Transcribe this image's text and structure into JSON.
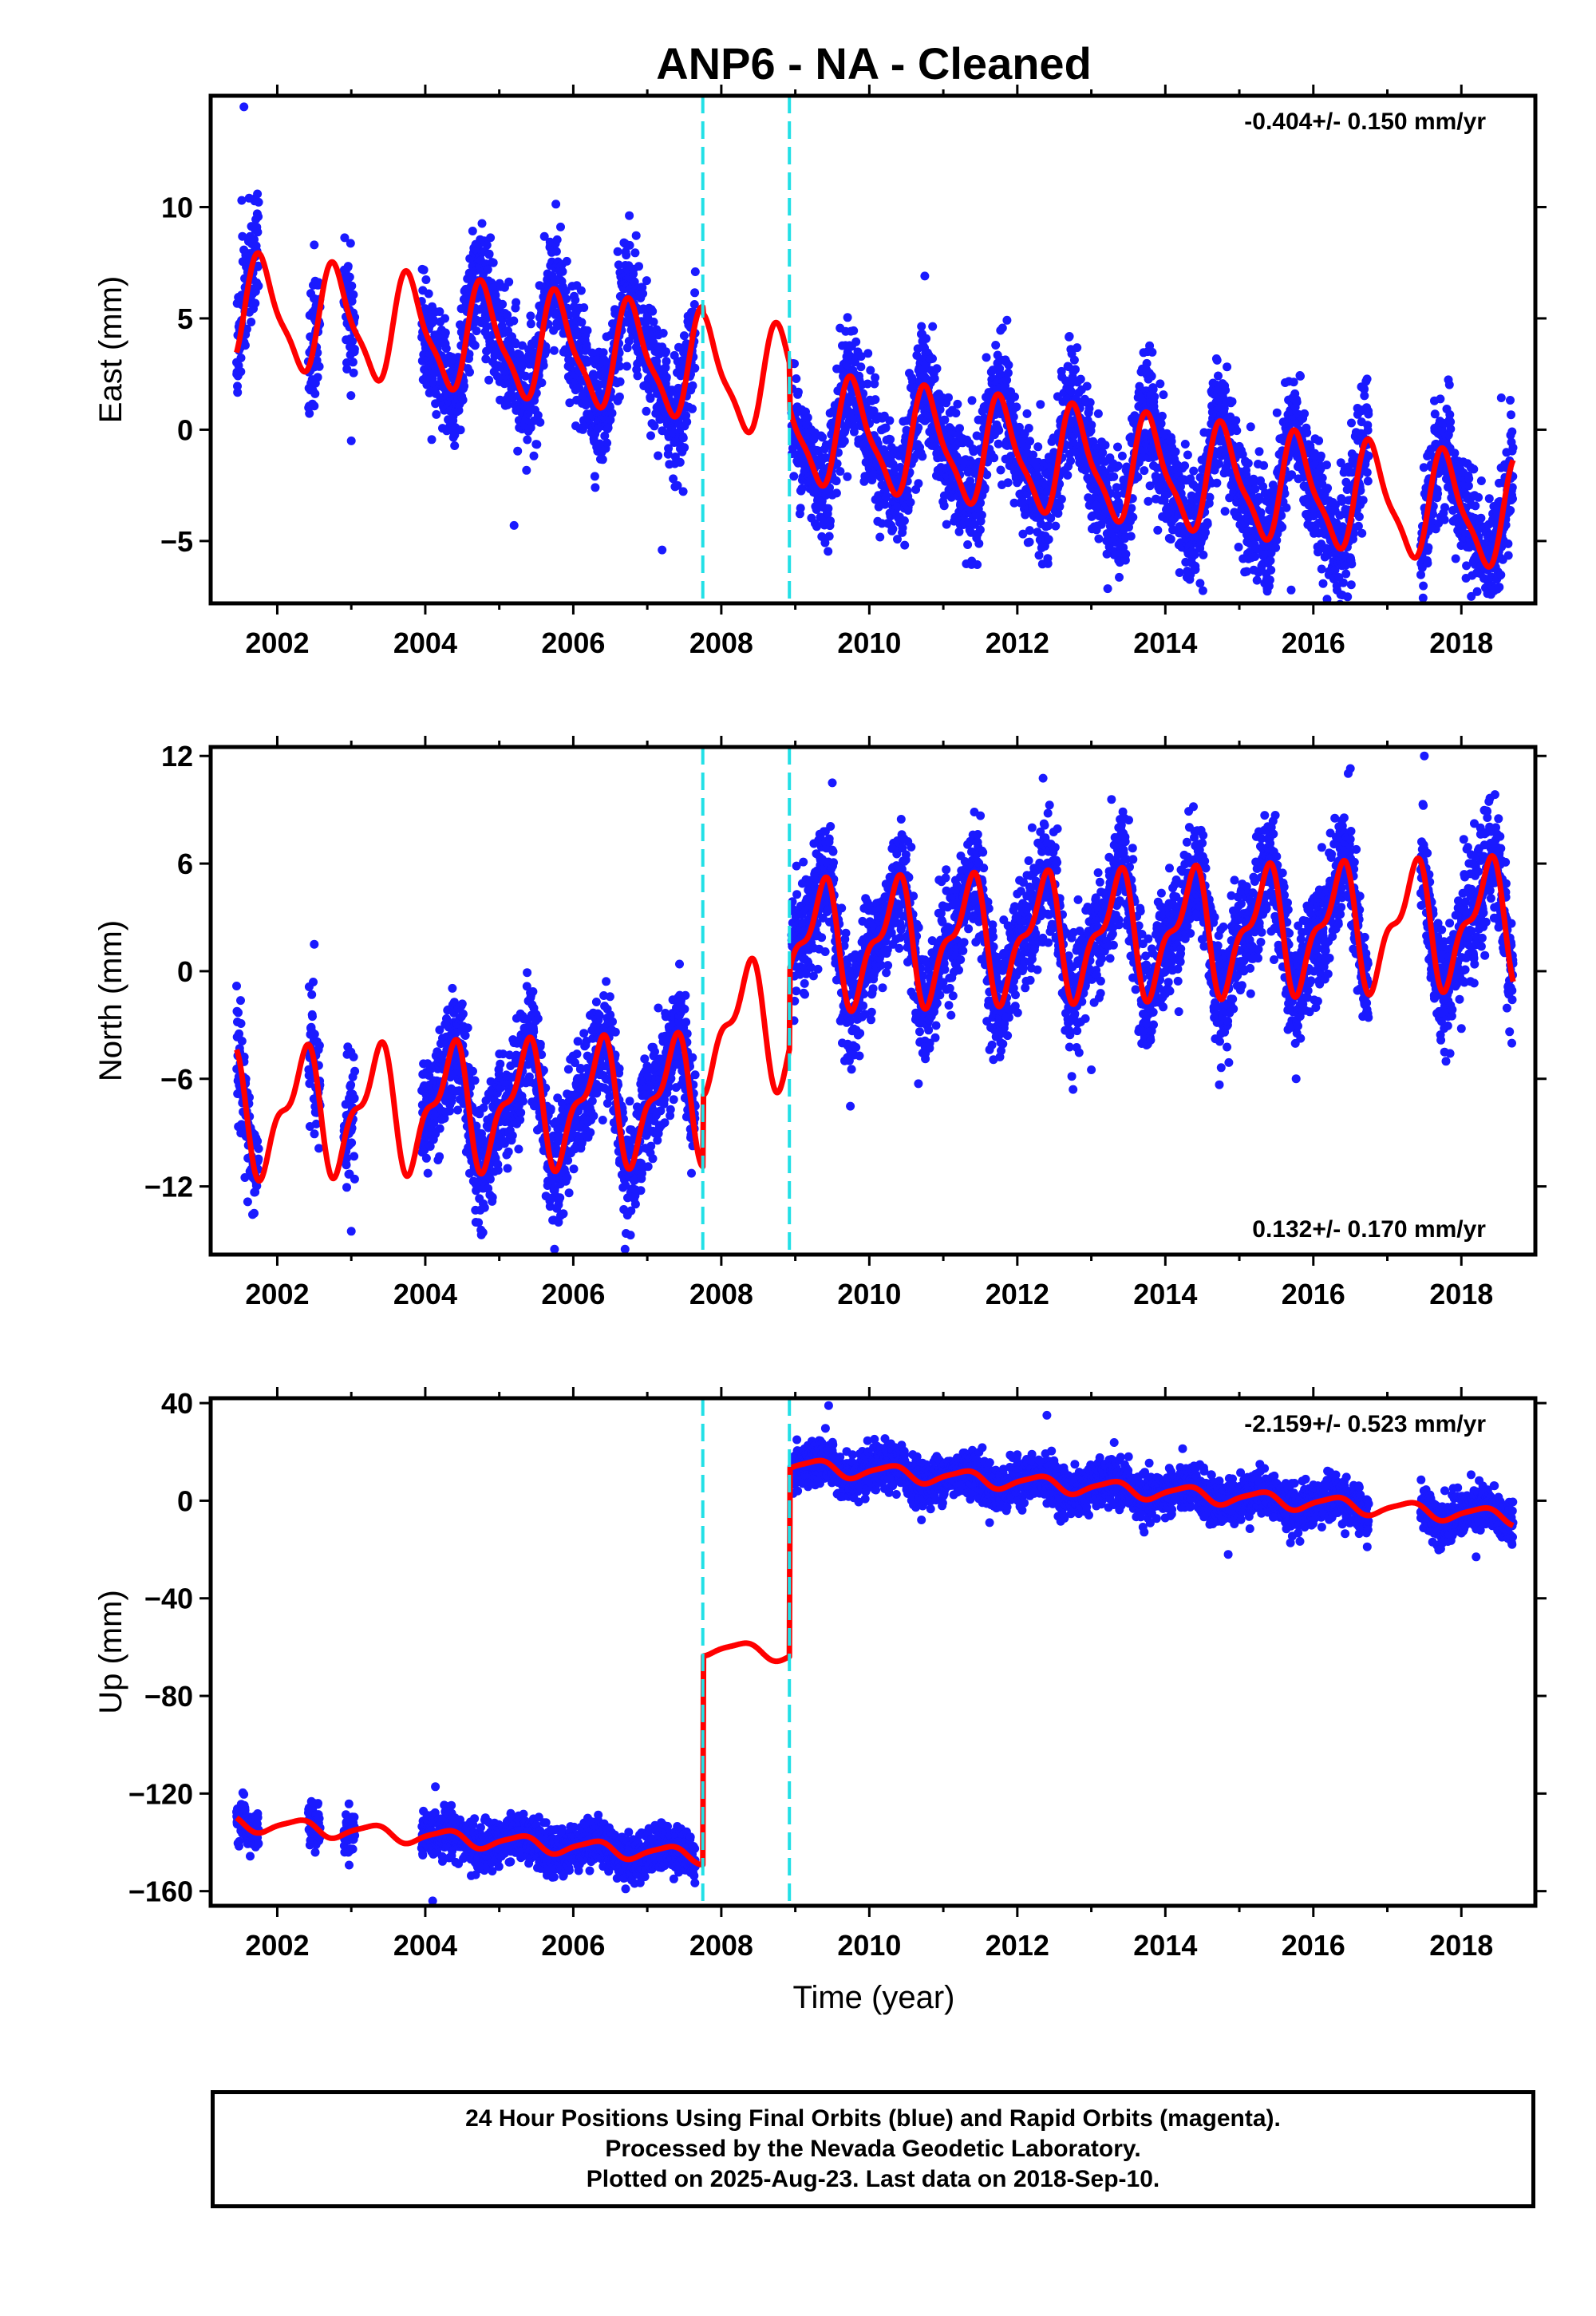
{
  "chart_data": {
    "title": "ANP6  - NA - Cleaned",
    "type": "scatter",
    "xlabel": "Time (year)",
    "x_ticks": [
      2002,
      2004,
      2006,
      2008,
      2010,
      2012,
      2014,
      2016,
      2018
    ],
    "xlim": [
      2001.1,
      2019.0
    ],
    "event_lines": [
      2007.75,
      2008.92
    ],
    "event_line_color": "#22e0e6",
    "series_colors": {
      "observations": "#1a1aff",
      "model": "#ff0000"
    },
    "panels": [
      {
        "ylabel": "East (mm)",
        "ylim": [
          -7.8,
          15.0
        ],
        "y_ticks": [
          -5,
          0,
          5,
          10
        ],
        "y_tick_labels": [
          "−5",
          "0",
          "5",
          "10"
        ],
        "rate": "-0.404+/- 0.150 mm/yr",
        "rate_position": "top-right",
        "model": {
          "linear": {
            "slope": -0.404,
            "t0": 2010,
            "offset_before": 1.9,
            "offset_between": 1.6,
            "offset_after": -0.4
          },
          "annual": {
            "cos": 0.6,
            "sin": -2.2
          },
          "semiannual": {
            "cos": -0.5,
            "sin": 0.4
          }
        },
        "data_spans": [
          [
            2001.45,
            2001.75
          ],
          [
            2002.42,
            2002.58
          ],
          [
            2002.9,
            2003.05
          ],
          [
            2003.95,
            2007.65
          ],
          [
            2008.95,
            2016.75
          ],
          [
            2017.45,
            2018.7
          ]
        ],
        "scatter_sigma": 1.3,
        "outliers": [
          [
            2001.55,
            14.5
          ],
          [
            2001.52,
            10.3
          ],
          [
            2001.62,
            10.4
          ],
          [
            2002.5,
            8.3
          ],
          [
            2003.0,
            -0.5
          ],
          [
            2005.2,
            -4.3
          ],
          [
            2006.6,
            8.0
          ],
          [
            2007.2,
            -5.4
          ],
          [
            2010.75,
            6.9
          ],
          [
            2015.7,
            -7.2
          ]
        ]
      },
      {
        "ylabel": "North (mm)",
        "ylim": [
          -15.8,
          12.5
        ],
        "y_ticks": [
          -12,
          -6,
          0,
          6,
          12
        ],
        "y_tick_labels": [
          "−12",
          "−6",
          "0",
          "6",
          "12"
        ],
        "rate": "0.132+/- 0.170 mm/yr",
        "rate_position": "bottom-right",
        "model": {
          "linear": {
            "slope": 0.132,
            "t0": 2010,
            "offset_before": -6.8,
            "offset_between": -2.8,
            "offset_after": 1.6
          },
          "annual": {
            "cos": -1.5,
            "sin": 2.6
          },
          "semiannual": {
            "cos": 1.2,
            "sin": -0.6
          }
        },
        "data_spans": [
          [
            2001.45,
            2001.75
          ],
          [
            2002.42,
            2002.58
          ],
          [
            2002.9,
            2003.05
          ],
          [
            2003.95,
            2007.65
          ],
          [
            2008.95,
            2016.75
          ],
          [
            2017.45,
            2018.7
          ]
        ],
        "scatter_sigma": 1.6,
        "outliers": [
          [
            2002.5,
            1.5
          ],
          [
            2003.0,
            -14.5
          ],
          [
            2005.8,
            -14.0
          ],
          [
            2006.7,
            -15.5
          ],
          [
            2009.5,
            10.5
          ],
          [
            2016.5,
            11.3
          ],
          [
            2017.5,
            12.0
          ],
          [
            2012.2,
            8.0
          ],
          [
            2013.0,
            -5.5
          ],
          [
            2018.0,
            -3.2
          ]
        ]
      },
      {
        "ylabel": "Up (mm)",
        "ylim": [
          -166,
          42
        ],
        "y_ticks": [
          -160,
          -120,
          -80,
          -40,
          0,
          40
        ],
        "y_tick_labels": [
          "−160",
          "−120",
          "−80",
          "−40",
          "0",
          "40"
        ],
        "rate": "-2.159+/- 0.523 mm/yr",
        "rate_position": "top-right",
        "model": {
          "linear": {
            "slope": -2.159,
            "t0": 2010,
            "offset_before": -150.5,
            "offset_between": -65.0,
            "offset_after": 12.0
          },
          "annual": {
            "cos": -0.5,
            "sin": 3.0
          },
          "semiannual": {
            "cos": 0.5,
            "sin": -0.5
          }
        },
        "data_spans": [
          [
            2001.45,
            2001.75
          ],
          [
            2002.42,
            2002.58
          ],
          [
            2002.9,
            2003.05
          ],
          [
            2003.95,
            2007.65
          ],
          [
            2008.95,
            2016.75
          ],
          [
            2017.45,
            2018.7
          ]
        ],
        "scatter_sigma": 4.5,
        "outliers": [
          [
            2009.45,
            39.0
          ],
          [
            2012.4,
            35.0
          ],
          [
            2014.85,
            -22.0
          ],
          [
            2018.2,
            -23.0
          ],
          [
            2004.1,
            -164.0
          ],
          [
            2002.55,
            -124.0
          ]
        ]
      }
    ]
  },
  "caption": {
    "lines": [
      "24 Hour Positions Using Final Orbits (blue) and Rapid Orbits (magenta).",
      "Processed by the Nevada Geodetic Laboratory.",
      "Plotted on 2025-Aug-23. Last data on 2018-Sep-10."
    ]
  }
}
